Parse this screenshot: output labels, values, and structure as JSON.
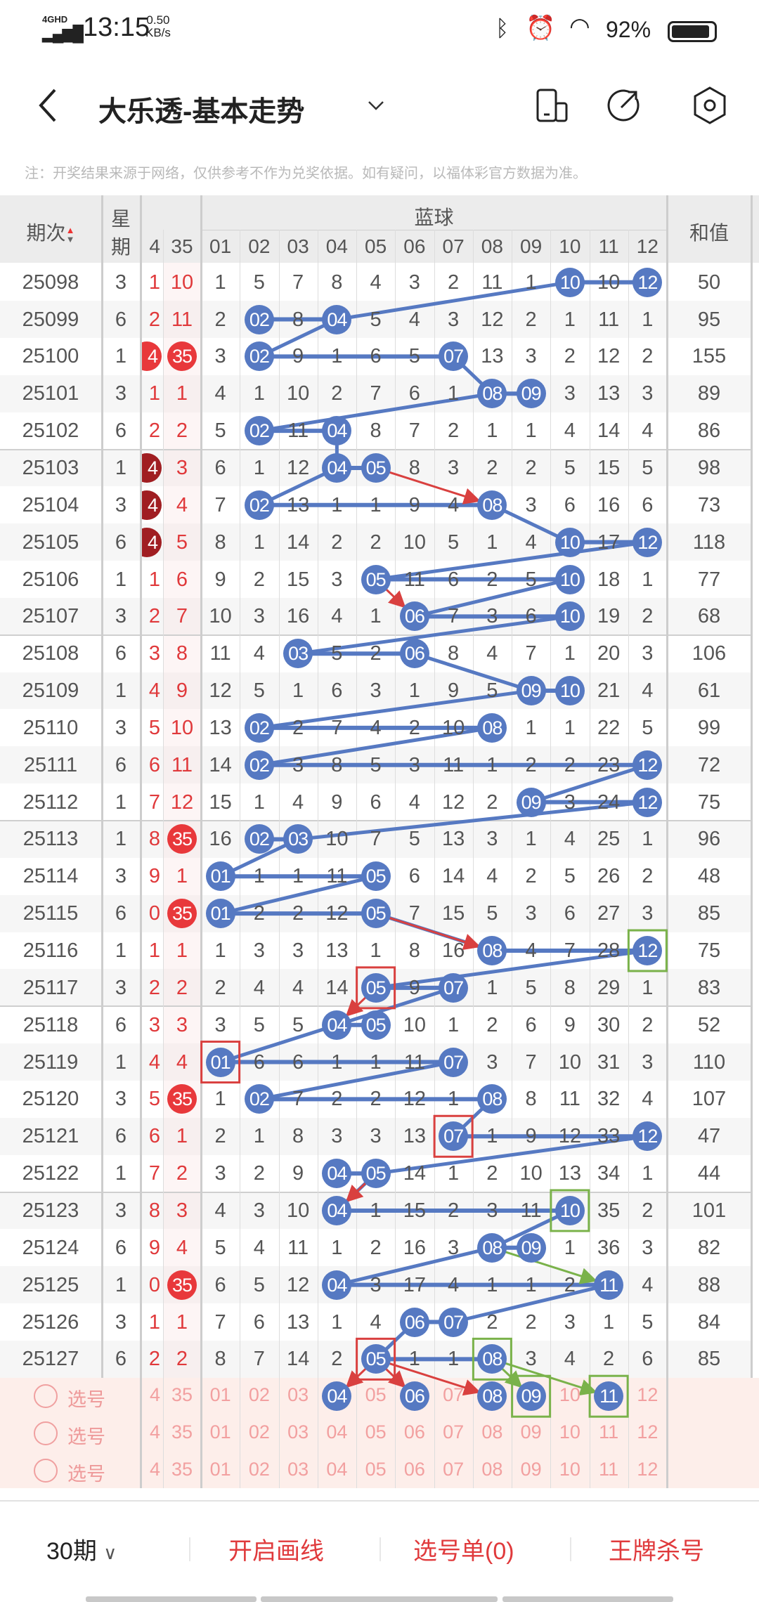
{
  "status_bar": {
    "network": "4GHD",
    "time": "13:15",
    "speed_value": "0.50",
    "speed_unit": "KB/s",
    "battery": "92%"
  },
  "header": {
    "title": "大乐透-基本走势"
  },
  "note": "注：开奖结果来源于网络，仅供参考不作为兑奖依据。如有疑问，以福体彩官方数据为准。",
  "table": {
    "col_period": "期次",
    "col_week_1": "星",
    "col_week_2": "期",
    "group_blue": "蓝球",
    "col_sum": "和值",
    "red_cols": [
      "4",
      "35"
    ],
    "blue_cols": [
      "01",
      "02",
      "03",
      "04",
      "05",
      "06",
      "07",
      "08",
      "09",
      "10",
      "11",
      "12"
    ],
    "colors": {
      "ball": "#5679c2",
      "red_ball": "#e8383b",
      "dark_ball": "#a01e22",
      "red_line": "#d9403f",
      "green_line": "#7ab24a"
    },
    "rows": [
      {
        "p": "25098",
        "w": "3",
        "r": [
          "1",
          "10"
        ],
        "rb": [
          "",
          ""
        ],
        "b": [
          "1",
          "5",
          "7",
          "8",
          "4",
          "3",
          "2",
          "11",
          "1",
          "10",
          "10",
          "12"
        ],
        "balls": [
          10,
          12
        ],
        "s": "50"
      },
      {
        "p": "25099",
        "w": "6",
        "r": [
          "2",
          "11"
        ],
        "rb": [
          "",
          ""
        ],
        "b": [
          "2",
          "02",
          "8",
          "04",
          "5",
          "4",
          "3",
          "12",
          "2",
          "1",
          "11",
          "1"
        ],
        "balls": [
          2,
          4
        ],
        "s": "95"
      },
      {
        "p": "25100",
        "w": "1",
        "r": [
          "4",
          "35"
        ],
        "rb": [
          "red",
          "red"
        ],
        "b": [
          "3",
          "02",
          "9",
          "1",
          "6",
          "5",
          "07",
          "13",
          "3",
          "2",
          "12",
          "2"
        ],
        "balls": [
          2,
          7
        ],
        "s": "155"
      },
      {
        "p": "25101",
        "w": "3",
        "r": [
          "1",
          "1"
        ],
        "rb": [
          "",
          ""
        ],
        "b": [
          "4",
          "1",
          "10",
          "2",
          "7",
          "6",
          "1",
          "08",
          "09",
          "3",
          "13",
          "3"
        ],
        "balls": [
          8,
          9
        ],
        "s": "89"
      },
      {
        "p": "25102",
        "w": "6",
        "r": [
          "2",
          "2"
        ],
        "rb": [
          "",
          ""
        ],
        "b": [
          "5",
          "02",
          "11",
          "04",
          "8",
          "7",
          "2",
          "1",
          "1",
          "4",
          "14",
          "4"
        ],
        "balls": [
          2,
          4
        ],
        "s": "86"
      },
      {
        "p": "25103",
        "w": "1",
        "r": [
          "4",
          "3"
        ],
        "rb": [
          "dark",
          ""
        ],
        "b": [
          "6",
          "1",
          "12",
          "04",
          "05",
          "8",
          "3",
          "2",
          "2",
          "5",
          "15",
          "5"
        ],
        "balls": [
          4,
          5
        ],
        "s": "98"
      },
      {
        "p": "25104",
        "w": "3",
        "r": [
          "4",
          "4"
        ],
        "rb": [
          "dark",
          ""
        ],
        "b": [
          "7",
          "02",
          "13",
          "1",
          "1",
          "9",
          "4",
          "08",
          "3",
          "6",
          "16",
          "6"
        ],
        "balls": [
          2,
          8
        ],
        "s": "73"
      },
      {
        "p": "25105",
        "w": "6",
        "r": [
          "4",
          "5"
        ],
        "rb": [
          "dark",
          ""
        ],
        "b": [
          "8",
          "1",
          "14",
          "2",
          "2",
          "10",
          "5",
          "1",
          "4",
          "10",
          "17",
          "12"
        ],
        "balls": [
          10,
          12
        ],
        "s": "118"
      },
      {
        "p": "25106",
        "w": "1",
        "r": [
          "1",
          "6"
        ],
        "rb": [
          "",
          ""
        ],
        "b": [
          "9",
          "2",
          "15",
          "3",
          "05",
          "11",
          "6",
          "2",
          "5",
          "10",
          "18",
          "1"
        ],
        "balls": [
          5,
          10
        ],
        "s": "77"
      },
      {
        "p": "25107",
        "w": "3",
        "r": [
          "2",
          "7"
        ],
        "rb": [
          "",
          ""
        ],
        "b": [
          "10",
          "3",
          "16",
          "4",
          "1",
          "06",
          "7",
          "3",
          "6",
          "10",
          "19",
          "2"
        ],
        "balls": [
          6,
          10
        ],
        "s": "68"
      },
      {
        "p": "25108",
        "w": "6",
        "r": [
          "3",
          "8"
        ],
        "rb": [
          "",
          ""
        ],
        "b": [
          "11",
          "4",
          "03",
          "5",
          "2",
          "06",
          "8",
          "4",
          "7",
          "1",
          "20",
          "3"
        ],
        "balls": [
          3,
          6
        ],
        "s": "106"
      },
      {
        "p": "25109",
        "w": "1",
        "r": [
          "4",
          "9"
        ],
        "rb": [
          "",
          ""
        ],
        "b": [
          "12",
          "5",
          "1",
          "6",
          "3",
          "1",
          "9",
          "5",
          "09",
          "10",
          "21",
          "4"
        ],
        "balls": [
          9,
          10
        ],
        "s": "61"
      },
      {
        "p": "25110",
        "w": "3",
        "r": [
          "5",
          "10"
        ],
        "rb": [
          "",
          ""
        ],
        "b": [
          "13",
          "02",
          "2",
          "7",
          "4",
          "2",
          "10",
          "08",
          "1",
          "1",
          "22",
          "5"
        ],
        "balls": [
          2,
          8
        ],
        "s": "99"
      },
      {
        "p": "25111",
        "w": "6",
        "r": [
          "6",
          "11"
        ],
        "rb": [
          "",
          ""
        ],
        "b": [
          "14",
          "02",
          "3",
          "8",
          "5",
          "3",
          "11",
          "1",
          "2",
          "2",
          "23",
          "12"
        ],
        "balls": [
          2,
          12
        ],
        "s": "72"
      },
      {
        "p": "25112",
        "w": "1",
        "r": [
          "7",
          "12"
        ],
        "rb": [
          "",
          ""
        ],
        "b": [
          "15",
          "1",
          "4",
          "9",
          "6",
          "4",
          "12",
          "2",
          "09",
          "3",
          "24",
          "12"
        ],
        "balls": [
          9,
          12
        ],
        "s": "75"
      },
      {
        "p": "25113",
        "w": "1",
        "r": [
          "8",
          "35"
        ],
        "rb": [
          "",
          "red"
        ],
        "b": [
          "16",
          "02",
          "03",
          "10",
          "7",
          "5",
          "13",
          "3",
          "1",
          "4",
          "25",
          "1"
        ],
        "balls": [
          2,
          3
        ],
        "s": "96"
      },
      {
        "p": "25114",
        "w": "3",
        "r": [
          "9",
          "1"
        ],
        "rb": [
          "",
          ""
        ],
        "b": [
          "01",
          "1",
          "1",
          "11",
          "05",
          "6",
          "14",
          "4",
          "2",
          "5",
          "26",
          "2"
        ],
        "balls": [
          1,
          5
        ],
        "s": "48"
      },
      {
        "p": "25115",
        "w": "6",
        "r": [
          "0",
          "35"
        ],
        "rb": [
          "",
          "red"
        ],
        "b": [
          "01",
          "2",
          "2",
          "12",
          "05",
          "7",
          "15",
          "5",
          "3",
          "6",
          "27",
          "3"
        ],
        "balls": [
          1,
          5
        ],
        "s": "85"
      },
      {
        "p": "25116",
        "w": "1",
        "r": [
          "1",
          "1"
        ],
        "rb": [
          "",
          ""
        ],
        "b": [
          "1",
          "3",
          "3",
          "13",
          "1",
          "8",
          "16",
          "08",
          "4",
          "7",
          "28",
          "12"
        ],
        "balls": [
          8,
          12
        ],
        "s": "75"
      },
      {
        "p": "25117",
        "w": "3",
        "r": [
          "2",
          "2"
        ],
        "rb": [
          "",
          ""
        ],
        "b": [
          "2",
          "4",
          "4",
          "14",
          "05",
          "9",
          "07",
          "1",
          "5",
          "8",
          "29",
          "1"
        ],
        "balls": [
          5,
          7
        ],
        "s": "83"
      },
      {
        "p": "25118",
        "w": "6",
        "r": [
          "3",
          "3"
        ],
        "rb": [
          "",
          ""
        ],
        "b": [
          "3",
          "5",
          "5",
          "04",
          "05",
          "10",
          "1",
          "2",
          "6",
          "9",
          "30",
          "2"
        ],
        "balls": [
          4,
          5
        ],
        "s": "52"
      },
      {
        "p": "25119",
        "w": "1",
        "r": [
          "4",
          "4"
        ],
        "rb": [
          "",
          ""
        ],
        "b": [
          "01",
          "6",
          "6",
          "1",
          "1",
          "11",
          "07",
          "3",
          "7",
          "10",
          "31",
          "3"
        ],
        "balls": [
          1,
          7
        ],
        "s": "110"
      },
      {
        "p": "25120",
        "w": "3",
        "r": [
          "5",
          "35"
        ],
        "rb": [
          "",
          "red"
        ],
        "b": [
          "1",
          "02",
          "7",
          "2",
          "2",
          "12",
          "1",
          "08",
          "8",
          "11",
          "32",
          "4"
        ],
        "balls": [
          2,
          8
        ],
        "s": "107"
      },
      {
        "p": "25121",
        "w": "6",
        "r": [
          "6",
          "1"
        ],
        "rb": [
          "",
          ""
        ],
        "b": [
          "2",
          "1",
          "8",
          "3",
          "3",
          "13",
          "07",
          "1",
          "9",
          "12",
          "33",
          "12"
        ],
        "balls": [
          7,
          12
        ],
        "s": "47"
      },
      {
        "p": "25122",
        "w": "1",
        "r": [
          "7",
          "2"
        ],
        "rb": [
          "",
          ""
        ],
        "b": [
          "3",
          "2",
          "9",
          "04",
          "05",
          "14",
          "1",
          "2",
          "10",
          "13",
          "34",
          "1"
        ],
        "balls": [
          4,
          5
        ],
        "s": "44"
      },
      {
        "p": "25123",
        "w": "3",
        "r": [
          "8",
          "3"
        ],
        "rb": [
          "",
          ""
        ],
        "b": [
          "4",
          "3",
          "10",
          "04",
          "1",
          "15",
          "2",
          "3",
          "11",
          "10",
          "35",
          "2"
        ],
        "balls": [
          4,
          10
        ],
        "s": "101"
      },
      {
        "p": "25124",
        "w": "6",
        "r": [
          "9",
          "4"
        ],
        "rb": [
          "",
          ""
        ],
        "b": [
          "5",
          "4",
          "11",
          "1",
          "2",
          "16",
          "3",
          "08",
          "09",
          "1",
          "36",
          "3"
        ],
        "balls": [
          8,
          9
        ],
        "s": "82"
      },
      {
        "p": "25125",
        "w": "1",
        "r": [
          "0",
          "35"
        ],
        "rb": [
          "",
          "red"
        ],
        "b": [
          "6",
          "5",
          "12",
          "04",
          "3",
          "17",
          "4",
          "1",
          "1",
          "2",
          "11",
          "4"
        ],
        "balls": [
          4,
          11
        ],
        "s": "88"
      },
      {
        "p": "25126",
        "w": "3",
        "r": [
          "1",
          "1"
        ],
        "rb": [
          "",
          ""
        ],
        "b": [
          "7",
          "6",
          "13",
          "1",
          "4",
          "06",
          "07",
          "2",
          "2",
          "3",
          "1",
          "5"
        ],
        "balls": [
          6,
          7
        ],
        "s": "84"
      },
      {
        "p": "25127",
        "w": "6",
        "r": [
          "2",
          "2"
        ],
        "rb": [
          "",
          ""
        ],
        "b": [
          "8",
          "7",
          "14",
          "2",
          "05",
          "1",
          "1",
          "08",
          "3",
          "4",
          "2",
          "6"
        ],
        "balls": [
          5,
          8
        ],
        "s": "85"
      }
    ],
    "links": [
      [
        10,
        4
      ],
      [
        4,
        2
      ],
      [
        7,
        8
      ],
      [
        8,
        2
      ],
      [
        4,
        4
      ],
      [
        4,
        2
      ],
      [
        8,
        10
      ],
      [
        12,
        5
      ],
      [
        10,
        6
      ],
      [
        10,
        3
      ],
      [
        6,
        9
      ],
      [
        9,
        2
      ],
      [
        8,
        2
      ],
      [
        12,
        9
      ],
      [
        12,
        3
      ],
      [
        3,
        1
      ],
      [
        5,
        1
      ],
      [
        5,
        8
      ],
      [
        12,
        5
      ],
      [
        7,
        4
      ],
      [
        4,
        1
      ],
      [
        7,
        2
      ],
      [
        8,
        7
      ],
      [
        12,
        5
      ],
      [
        5,
        4
      ],
      [
        10,
        8
      ],
      [
        8,
        4
      ],
      [
        11,
        7
      ],
      [
        6,
        5
      ]
    ],
    "red_arrows": [
      [
        [
          5,
          5
        ],
        [
          6,
          8
        ]
      ],
      [
        [
          8,
          5
        ],
        [
          9,
          6
        ]
      ],
      [
        [
          17,
          5
        ],
        [
          18,
          8
        ]
      ],
      [
        [
          19,
          5
        ],
        [
          20,
          4
        ]
      ],
      [
        [
          24,
          5
        ],
        [
          25,
          4
        ]
      ],
      [
        [
          29,
          5
        ],
        [
          30,
          4
        ]
      ],
      [
        [
          29,
          5
        ],
        [
          30,
          6
        ]
      ],
      [
        [
          29,
          5
        ],
        [
          30,
          8
        ]
      ]
    ],
    "green_arrows": [
      [
        [
          26,
          8
        ],
        [
          27,
          11
        ]
      ],
      [
        [
          29,
          8
        ],
        [
          30,
          9
        ]
      ],
      [
        [
          29,
          8
        ],
        [
          30,
          11
        ]
      ]
    ],
    "red_boxes": [
      [
        19,
        5
      ],
      [
        21,
        1
      ],
      [
        23,
        7
      ],
      [
        29,
        5
      ]
    ],
    "green_boxes": [
      [
        18,
        12
      ],
      [
        25,
        10
      ],
      [
        29,
        8
      ],
      [
        30,
        9
      ],
      [
        30,
        11
      ]
    ]
  },
  "selection": {
    "label": "选号",
    "rows": 3,
    "selected_row_balls": [
      4,
      6,
      8,
      9,
      11
    ]
  },
  "bottom_bar": {
    "periods": "30期",
    "draw_lines": "开启画线",
    "pick_list": "选号单(0)",
    "kill_numbers": "王牌杀号"
  }
}
